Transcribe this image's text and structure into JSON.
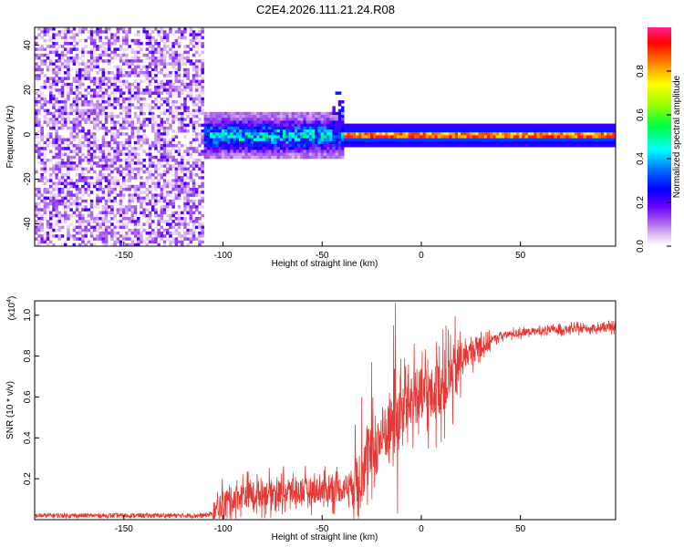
{
  "title": "C2E4.2026.111.21.24.R08",
  "chart_data": [
    {
      "type": "heatmap",
      "name": "spectrogram",
      "xlabel": "Height of straight line (km)",
      "ylabel": "Frequency (Hz)",
      "xlim": [
        -195,
        98
      ],
      "ylim": [
        -50,
        48
      ],
      "x_ticks": [
        -150,
        -100,
        -50,
        0,
        50
      ],
      "y_ticks": [
        -40,
        -20,
        0,
        20,
        40
      ],
      "colorbar": {
        "label": "Normalized spectral amplitude",
        "range": [
          0,
          1
        ],
        "ticks": [
          0.0,
          0.2,
          0.4,
          0.6,
          0.8
        ]
      },
      "regions": [
        {
          "description": "scattered noise speckle",
          "x_range": [
            -195,
            -110
          ],
          "y_range": [
            -50,
            48
          ],
          "amplitude": [
            0.02,
            0.15
          ]
        },
        {
          "description": "broad signal band",
          "x_range": [
            -110,
            -40
          ],
          "y_center": 0,
          "y_halfwidth": 8,
          "amplitude": [
            0.1,
            0.45
          ]
        },
        {
          "description": "narrowing signal band",
          "x_range": [
            -40,
            98
          ],
          "y_center": 0,
          "y_halfwidth": 2,
          "amplitude": [
            0.5,
            0.95
          ]
        }
      ]
    },
    {
      "type": "line",
      "name": "snr",
      "xlabel": "Height of straight line (km)",
      "ylabel": "SNR (10 * v/v)",
      "scale_note": "(x10",
      "scale_exp": "4",
      "scale_close": ")",
      "xlim": [
        -195,
        98
      ],
      "ylim": [
        0,
        1.07
      ],
      "x_ticks": [
        -150,
        -100,
        -50,
        0,
        50
      ],
      "y_ticks": [
        0.2,
        0.4,
        0.6,
        0.8,
        1.0
      ],
      "color": "#e53935",
      "anchors": [
        [
          -195,
          0.02
        ],
        [
          -110,
          0.02
        ],
        [
          -104,
          0.03
        ],
        [
          -100,
          0.08
        ],
        [
          -90,
          0.12
        ],
        [
          -80,
          0.13
        ],
        [
          -60,
          0.14
        ],
        [
          -40,
          0.15
        ],
        [
          -32,
          0.2
        ],
        [
          -26,
          0.3
        ],
        [
          -20,
          0.4
        ],
        [
          -12,
          0.5
        ],
        [
          -5,
          0.6
        ],
        [
          5,
          0.6
        ],
        [
          15,
          0.7
        ],
        [
          22,
          0.8
        ],
        [
          30,
          0.85
        ],
        [
          40,
          0.9
        ],
        [
          55,
          0.92
        ],
        [
          70,
          0.93
        ],
        [
          98,
          0.94
        ]
      ],
      "spikes": [
        [
          -13,
          1.06
        ],
        [
          -14,
          0.95
        ],
        [
          -25,
          0.77
        ],
        [
          -12,
          0.03
        ],
        [
          -30,
          0.6
        ],
        [
          -8,
          0.75
        ],
        [
          -3,
          0.72
        ],
        [
          -16,
          0.62
        ],
        [
          8,
          0.78
        ]
      ]
    }
  ]
}
